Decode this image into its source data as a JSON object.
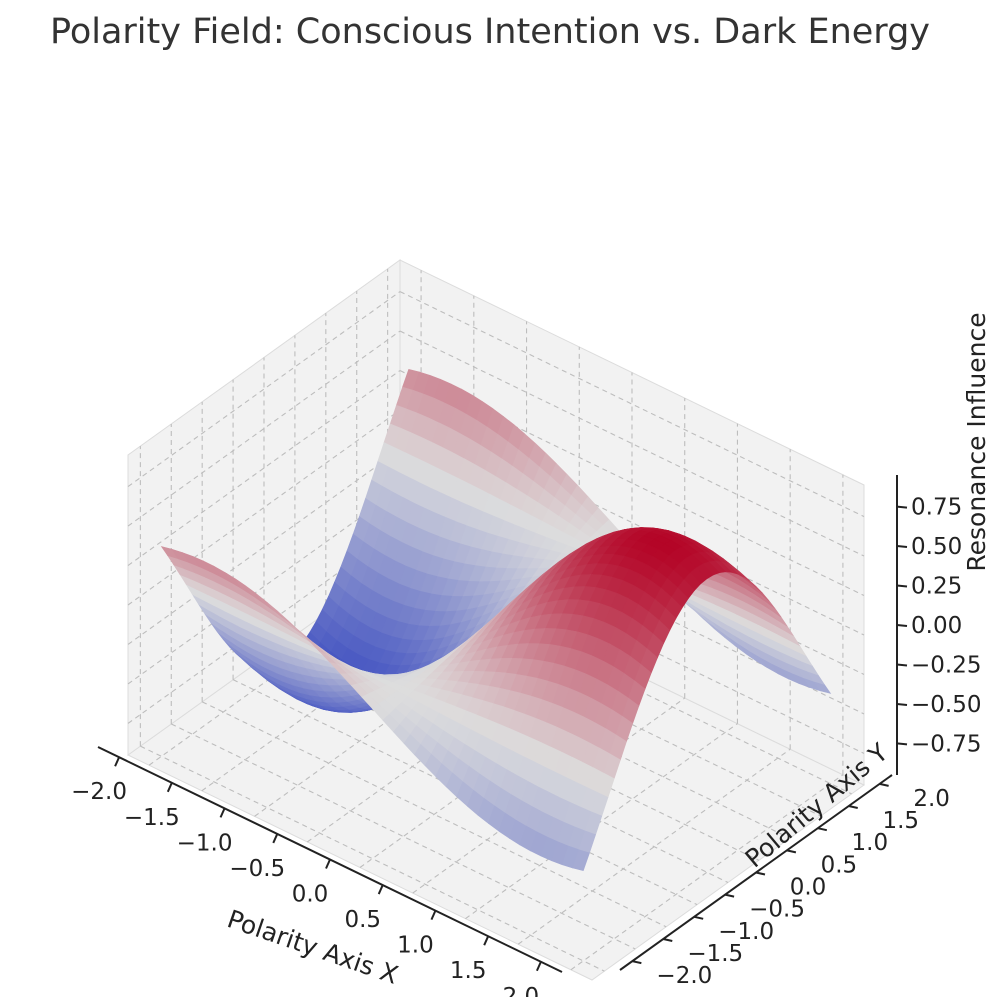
{
  "chart_data": {
    "type": "surface3d",
    "title": "Polarity Field: Conscious Intention vs. Dark Energy",
    "xlabel": "Polarity Axis X",
    "ylabel": "Polarity Axis Y",
    "zlabel": "Resonance Influence",
    "xlim": [
      -2.2,
      2.2
    ],
    "ylim": [
      -2.2,
      2.2
    ],
    "zlim": [
      -0.95,
      0.95
    ],
    "x_ticks": [
      "−2.0",
      "−1.5",
      "−1.0",
      "−0.5",
      "0.0",
      "0.5",
      "1.0",
      "1.5",
      "2.0"
    ],
    "y_ticks": [
      "−2.0",
      "−1.5",
      "−1.0",
      "−0.5",
      "0.0",
      "0.5",
      "1.0",
      "1.5",
      "2.0"
    ],
    "z_ticks": [
      "−0.75",
      "−0.50",
      "−0.25",
      "0.00",
      "0.25",
      "0.50",
      "0.75"
    ],
    "grid": true,
    "grid_style": "dashed",
    "colormap": "coolwarm",
    "colormap_stops": [
      "#3b4cc0",
      "#dddddd",
      "#b40426"
    ],
    "function": "sin(x)·cos(y)",
    "grid_range": [
      -2.0,
      2.0
    ]
  }
}
